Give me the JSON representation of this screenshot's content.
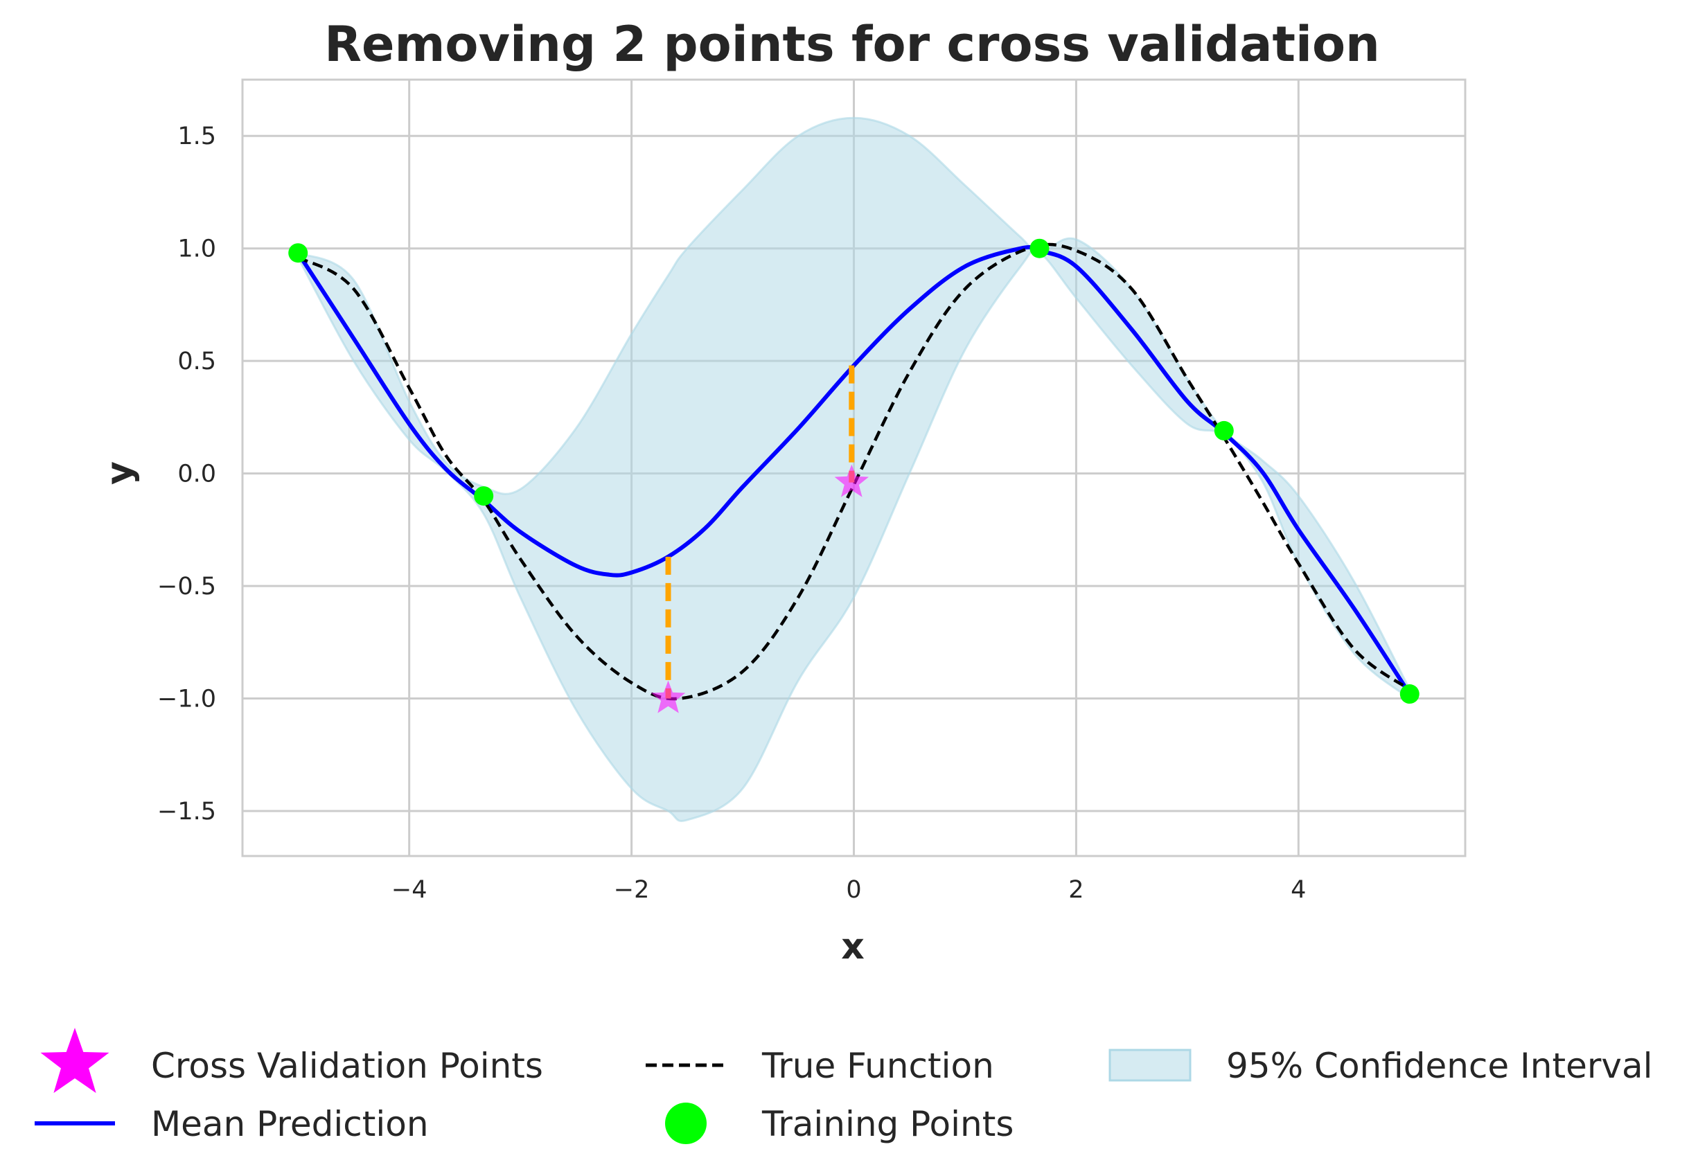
{
  "chart_data": {
    "type": "line",
    "title": "Removing 2 points for cross validation",
    "xlabel": "x",
    "ylabel": "y",
    "xlim": [
      -5.5,
      5.5
    ],
    "ylim": [
      -1.7,
      1.75
    ],
    "xticks": [
      -4,
      -2,
      0,
      2,
      4
    ],
    "xtick_labels": [
      "−4",
      "−2",
      "0",
      "2",
      "4"
    ],
    "yticks": [
      -1.5,
      -1.0,
      -0.5,
      0.0,
      0.5,
      1.0,
      1.5
    ],
    "ytick_labels": [
      "−1.5",
      "−1.0",
      "−0.5",
      "0.0",
      "0.5",
      "1.0",
      "1.5"
    ],
    "grid": true,
    "legend_position": "bottom",
    "series": [
      {
        "name": "Mean Prediction",
        "kind": "line",
        "color": "#0000ff",
        "x": [
          -5.0,
          -4.5,
          -4.0,
          -3.67,
          -3.33,
          -3.0,
          -2.5,
          -2.2,
          -2.0,
          -1.67,
          -1.33,
          -1.0,
          -0.5,
          0.0,
          0.5,
          1.0,
          1.5,
          1.67,
          2.0,
          2.5,
          3.0,
          3.33,
          3.67,
          4.0,
          4.5,
          5.0
        ],
        "y": [
          0.98,
          0.6,
          0.22,
          0.02,
          -0.12,
          -0.26,
          -0.41,
          -0.45,
          -0.44,
          -0.37,
          -0.24,
          -0.06,
          0.2,
          0.48,
          0.73,
          0.92,
          1.0,
          0.99,
          0.92,
          0.64,
          0.32,
          0.18,
          0.01,
          -0.25,
          -0.6,
          -0.98
        ]
      },
      {
        "name": "True Function",
        "kind": "dashed-line",
        "color": "#000000",
        "x": [
          -5.0,
          -4.5,
          -4.0,
          -3.67,
          -3.33,
          -3.0,
          -2.5,
          -2.0,
          -1.57,
          -1.0,
          -0.5,
          0.0,
          0.5,
          1.0,
          1.57,
          2.0,
          2.5,
          3.0,
          3.33,
          3.67,
          4.0,
          4.5,
          5.0
        ],
        "y": [
          0.96,
          0.82,
          0.38,
          0.08,
          -0.12,
          -0.38,
          -0.72,
          -0.93,
          -1.0,
          -0.88,
          -0.55,
          -0.05,
          0.45,
          0.82,
          1.0,
          0.99,
          0.82,
          0.42,
          0.16,
          -0.12,
          -0.4,
          -0.78,
          -0.96
        ]
      },
      {
        "name": "95% Confidence Interval",
        "kind": "band",
        "color": "#add8e6",
        "x": [
          -5.0,
          -4.5,
          -4.0,
          -3.67,
          -3.33,
          -3.0,
          -2.5,
          -2.0,
          -1.67,
          -1.5,
          -1.0,
          -0.5,
          0.0,
          0.5,
          1.0,
          1.5,
          1.67,
          2.0,
          2.5,
          3.0,
          3.33,
          3.67,
          4.0,
          4.5,
          5.0
        ],
        "upper": [
          0.98,
          0.86,
          0.32,
          0.05,
          -0.06,
          -0.07,
          0.2,
          0.62,
          0.88,
          1.0,
          1.26,
          1.5,
          1.58,
          1.5,
          1.28,
          1.05,
          0.98,
          1.04,
          0.82,
          0.42,
          0.19,
          0.06,
          -0.1,
          -0.48,
          -0.96
        ],
        "lower": [
          0.96,
          0.5,
          0.15,
          0.01,
          -0.18,
          -0.55,
          -1.05,
          -1.4,
          -1.5,
          -1.54,
          -1.4,
          -0.92,
          -0.55,
          0.0,
          0.55,
          0.92,
          0.98,
          0.78,
          0.48,
          0.22,
          0.17,
          -0.03,
          -0.4,
          -0.8,
          -1.0
        ]
      },
      {
        "name": "Training Points",
        "kind": "scatter",
        "color": "#00ff00",
        "x": [
          -5.0,
          -3.33,
          1.67,
          3.33,
          5.0
        ],
        "y": [
          0.98,
          -0.1,
          1.0,
          0.19,
          -0.98
        ]
      },
      {
        "name": "Cross Validation Points",
        "kind": "star-scatter",
        "color": "#ff00ff",
        "x": [
          -1.67,
          -0.02
        ],
        "y": [
          -1.0,
          -0.04
        ]
      }
    ],
    "residuals": {
      "color": "#ffa500",
      "segments": [
        {
          "x": -1.67,
          "y_from": -0.37,
          "y_to": -1.0
        },
        {
          "x": -0.02,
          "y_from": 0.48,
          "y_to": -0.04
        }
      ]
    },
    "legend": {
      "entries": [
        {
          "label": "Cross Validation Points",
          "marker": "star",
          "color": "#ff00ff"
        },
        {
          "label": "Mean Prediction",
          "marker": "line",
          "color": "#0000ff"
        },
        {
          "label": "True Function",
          "marker": "dashed-line",
          "color": "#000000"
        },
        {
          "label": "Training Points",
          "marker": "circle",
          "color": "#00ff00"
        },
        {
          "label": "95% Confidence Interval",
          "marker": "patch",
          "color": "#add8e6"
        }
      ]
    }
  }
}
